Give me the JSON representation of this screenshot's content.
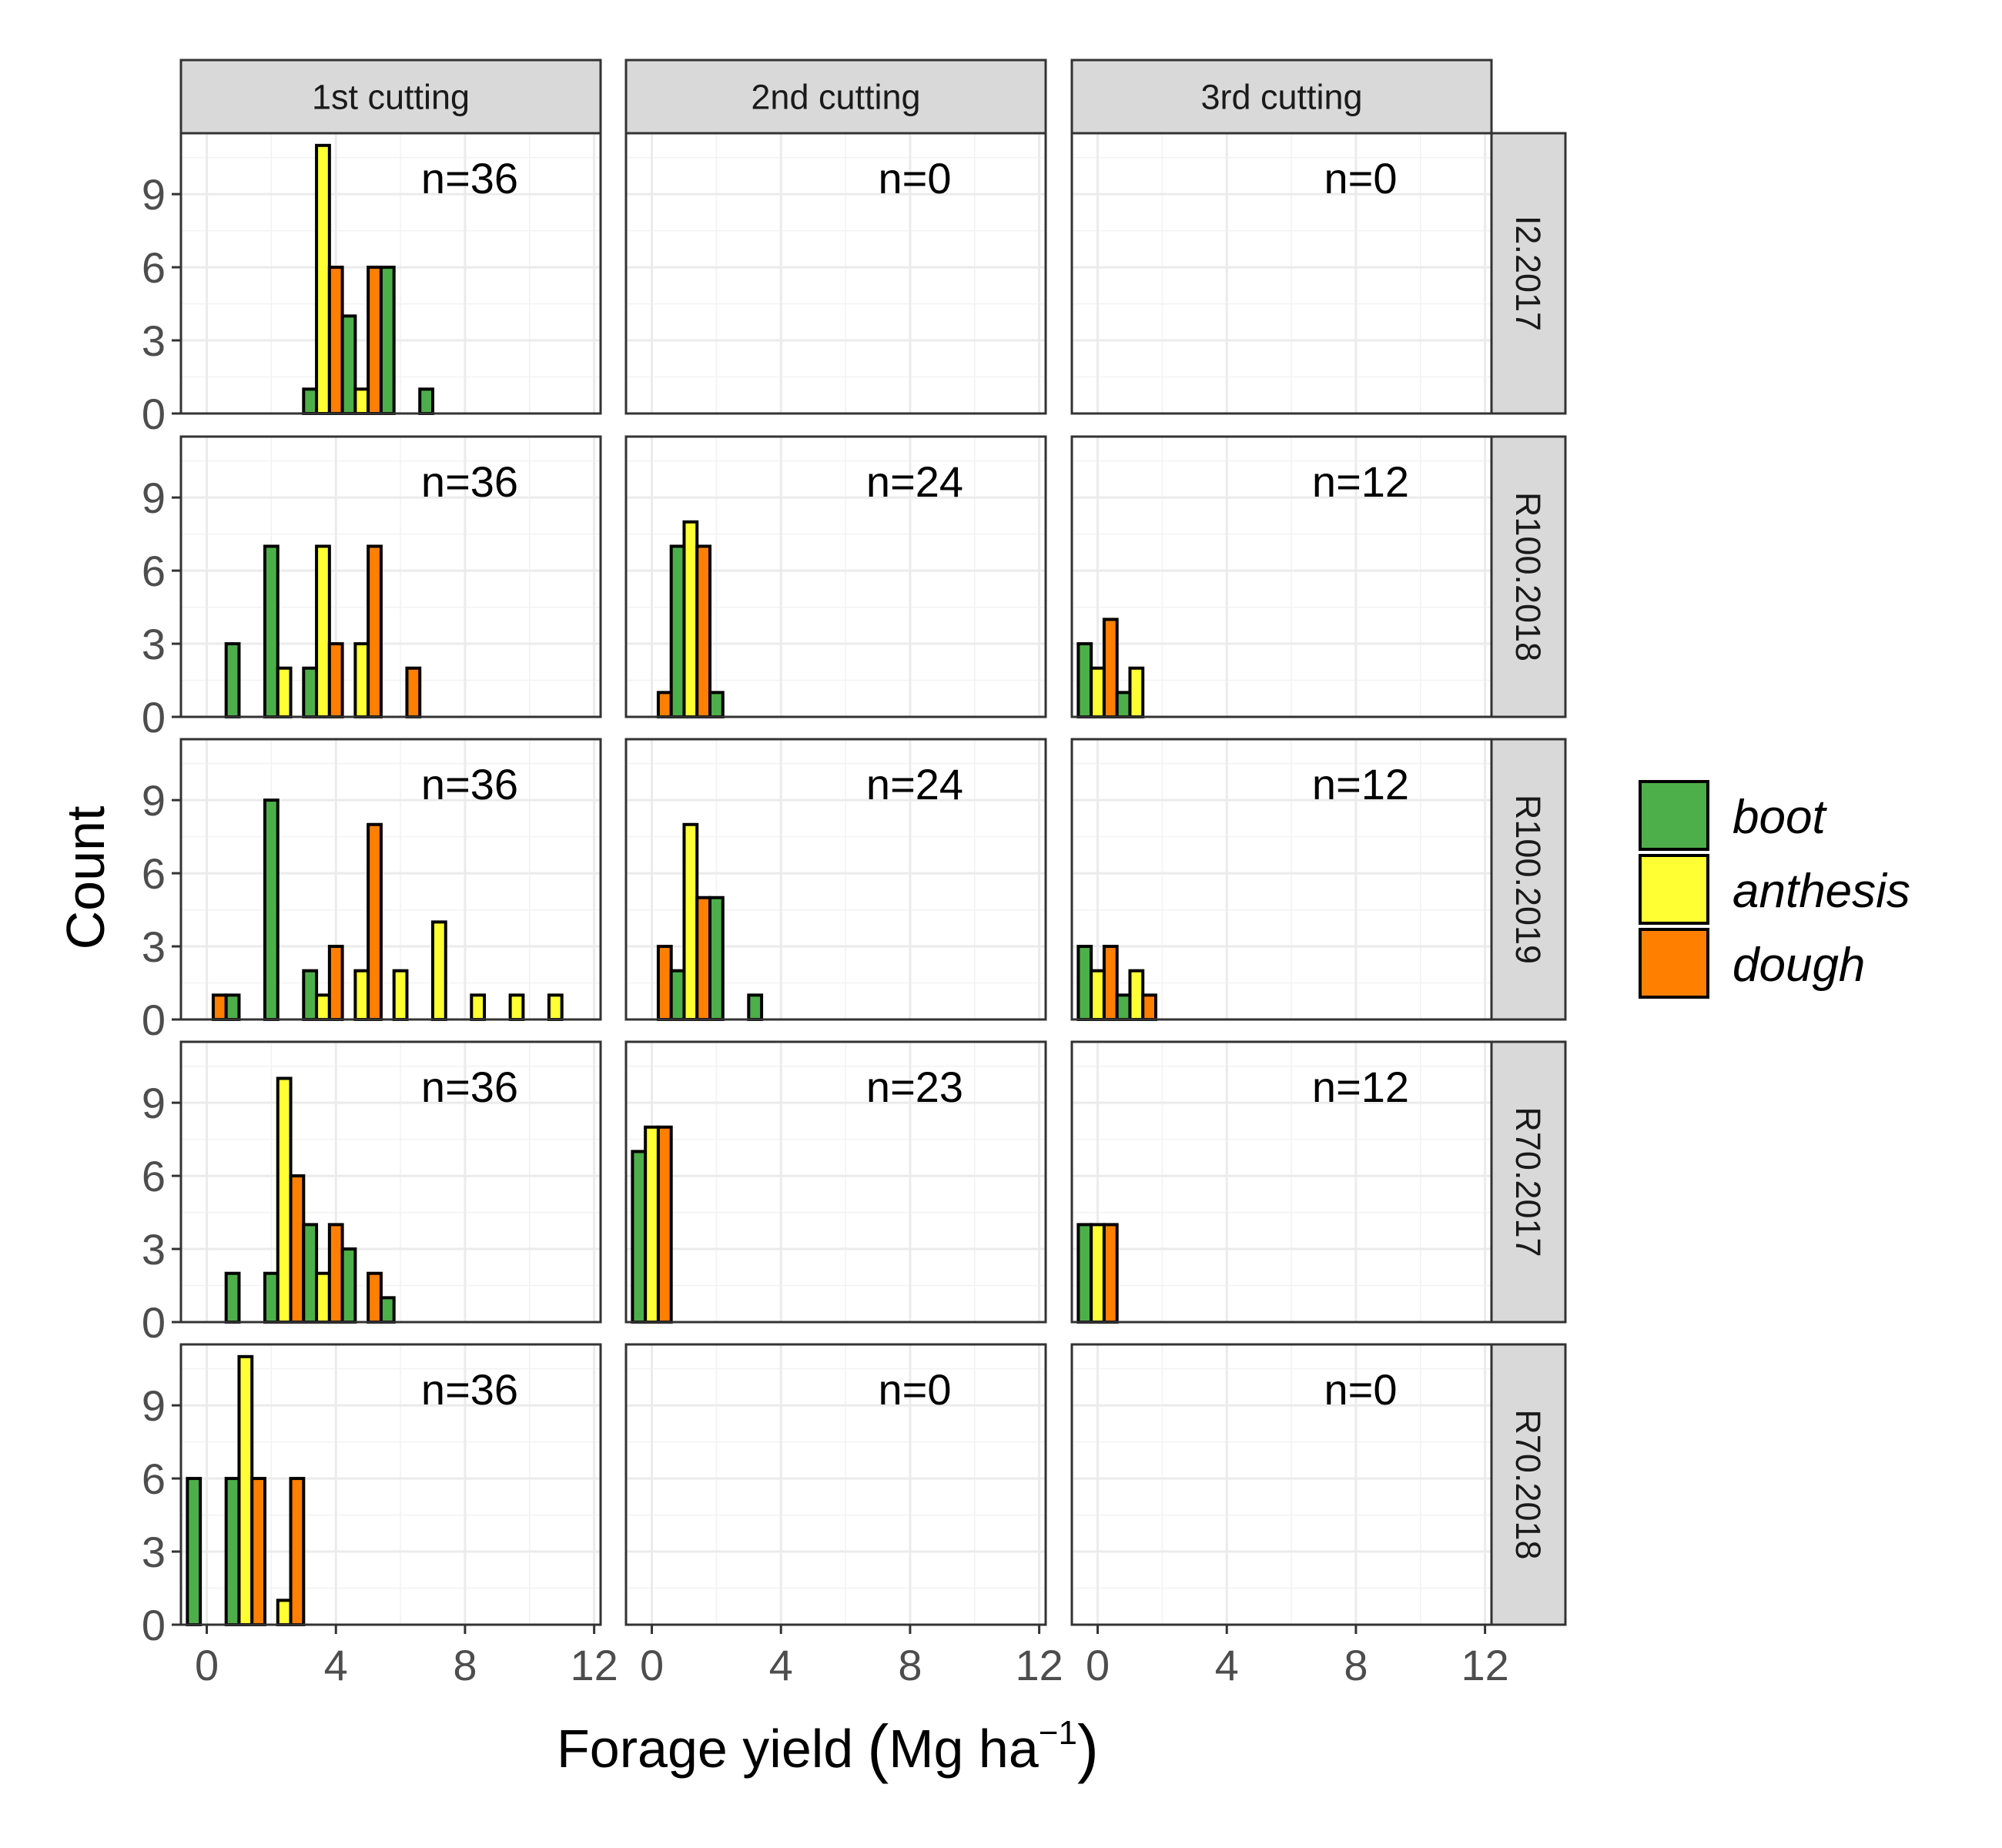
{
  "chart_data": {
    "type": "bar",
    "chart_kind": "faceted histogram",
    "xlabel": "Forage yield",
    "xlabel_unit": "Mg ha",
    "xlabel_unit_sup": "−1",
    "ylabel": "Count",
    "xlim": [
      -0.8,
      12.2
    ],
    "ylim": [
      0,
      11.5
    ],
    "x_ticks": [
      0,
      4,
      8,
      12
    ],
    "y_ticks": [
      0,
      3,
      6,
      9
    ],
    "bin_width": 1.2,
    "legend": {
      "position": "right",
      "entries": [
        {
          "name": "boot",
          "color": "#4daf4a"
        },
        {
          "name": "anthesis",
          "color": "#ffff33"
        },
        {
          "name": "dough",
          "color": "#ff7f00"
        }
      ]
    },
    "columns": [
      "1st cutting",
      "2nd cutting",
      "3rd cutting"
    ],
    "rows": [
      "I2.2017",
      "R100.2018",
      "R100.2019",
      "R70.2017",
      "R70.2018"
    ],
    "panels": [
      {
        "row": 0,
        "col": 0,
        "n_label": "n=36",
        "bars": [
          {
            "stage": "boot",
            "x": 3.2,
            "count": 1
          },
          {
            "stage": "anthesis",
            "x": 3.6,
            "count": 11
          },
          {
            "stage": "dough",
            "x": 4.0,
            "count": 6
          },
          {
            "stage": "boot",
            "x": 4.4,
            "count": 4
          },
          {
            "stage": "anthesis",
            "x": 4.8,
            "count": 1
          },
          {
            "stage": "dough",
            "x": 5.2,
            "count": 6
          },
          {
            "stage": "boot",
            "x": 5.6,
            "count": 6
          },
          {
            "stage": "boot",
            "x": 6.8,
            "count": 1
          }
        ]
      },
      {
        "row": 0,
        "col": 1,
        "n_label": "n=0",
        "bars": []
      },
      {
        "row": 0,
        "col": 2,
        "n_label": "n=0",
        "bars": []
      },
      {
        "row": 1,
        "col": 0,
        "n_label": "n=36",
        "bars": [
          {
            "stage": "boot",
            "x": 0.8,
            "count": 3
          },
          {
            "stage": "boot",
            "x": 2.0,
            "count": 7
          },
          {
            "stage": "anthesis",
            "x": 2.4,
            "count": 2
          },
          {
            "stage": "boot",
            "x": 3.2,
            "count": 2
          },
          {
            "stage": "anthesis",
            "x": 3.6,
            "count": 7
          },
          {
            "stage": "dough",
            "x": 4.0,
            "count": 3
          },
          {
            "stage": "anthesis",
            "x": 4.8,
            "count": 3
          },
          {
            "stage": "dough",
            "x": 5.2,
            "count": 7
          },
          {
            "stage": "dough",
            "x": 6.4,
            "count": 2
          }
        ]
      },
      {
        "row": 1,
        "col": 1,
        "n_label": "n=24",
        "bars": [
          {
            "stage": "dough",
            "x": 0.4,
            "count": 1
          },
          {
            "stage": "boot",
            "x": 0.8,
            "count": 7
          },
          {
            "stage": "anthesis",
            "x": 1.2,
            "count": 8
          },
          {
            "stage": "dough",
            "x": 1.6,
            "count": 7
          },
          {
            "stage": "boot",
            "x": 2.0,
            "count": 1
          }
        ]
      },
      {
        "row": 1,
        "col": 2,
        "n_label": "n=12",
        "bars": [
          {
            "stage": "boot",
            "x": -0.4,
            "count": 3
          },
          {
            "stage": "anthesis",
            "x": 0.0,
            "count": 2
          },
          {
            "stage": "dough",
            "x": 0.4,
            "count": 4
          },
          {
            "stage": "boot",
            "x": 0.8,
            "count": 1
          },
          {
            "stage": "anthesis",
            "x": 1.2,
            "count": 2
          }
        ]
      },
      {
        "row": 2,
        "col": 0,
        "n_label": "n=36",
        "bars": [
          {
            "stage": "dough",
            "x": 0.4,
            "count": 1
          },
          {
            "stage": "boot",
            "x": 0.8,
            "count": 1
          },
          {
            "stage": "boot",
            "x": 2.0,
            "count": 9
          },
          {
            "stage": "boot",
            "x": 3.2,
            "count": 2
          },
          {
            "stage": "anthesis",
            "x": 3.6,
            "count": 1
          },
          {
            "stage": "dough",
            "x": 4.0,
            "count": 3
          },
          {
            "stage": "anthesis",
            "x": 4.8,
            "count": 2
          },
          {
            "stage": "dough",
            "x": 5.2,
            "count": 8
          },
          {
            "stage": "anthesis",
            "x": 6.0,
            "count": 2
          },
          {
            "stage": "anthesis",
            "x": 7.2,
            "count": 4
          },
          {
            "stage": "anthesis",
            "x": 8.4,
            "count": 1
          },
          {
            "stage": "anthesis",
            "x": 9.6,
            "count": 1
          },
          {
            "stage": "anthesis",
            "x": 10.8,
            "count": 1
          }
        ]
      },
      {
        "row": 2,
        "col": 1,
        "n_label": "n=24",
        "bars": [
          {
            "stage": "dough",
            "x": 0.4,
            "count": 3
          },
          {
            "stage": "boot",
            "x": 0.8,
            "count": 2
          },
          {
            "stage": "anthesis",
            "x": 1.2,
            "count": 8
          },
          {
            "stage": "dough",
            "x": 1.6,
            "count": 5
          },
          {
            "stage": "boot",
            "x": 2.0,
            "count": 5
          },
          {
            "stage": "boot",
            "x": 3.2,
            "count": 1
          }
        ]
      },
      {
        "row": 2,
        "col": 2,
        "n_label": "n=12",
        "bars": [
          {
            "stage": "boot",
            "x": -0.4,
            "count": 3
          },
          {
            "stage": "anthesis",
            "x": 0.0,
            "count": 2
          },
          {
            "stage": "dough",
            "x": 0.4,
            "count": 3
          },
          {
            "stage": "boot",
            "x": 0.8,
            "count": 1
          },
          {
            "stage": "anthesis",
            "x": 1.2,
            "count": 2
          },
          {
            "stage": "dough",
            "x": 1.6,
            "count": 1
          }
        ]
      },
      {
        "row": 3,
        "col": 0,
        "n_label": "n=36",
        "bars": [
          {
            "stage": "boot",
            "x": 0.8,
            "count": 2
          },
          {
            "stage": "boot",
            "x": 2.0,
            "count": 2
          },
          {
            "stage": "anthesis",
            "x": 2.4,
            "count": 10
          },
          {
            "stage": "dough",
            "x": 2.8,
            "count": 6
          },
          {
            "stage": "boot",
            "x": 3.2,
            "count": 4
          },
          {
            "stage": "anthesis",
            "x": 3.6,
            "count": 2
          },
          {
            "stage": "dough",
            "x": 4.0,
            "count": 4
          },
          {
            "stage": "boot",
            "x": 4.4,
            "count": 3
          },
          {
            "stage": "dough",
            "x": 5.2,
            "count": 2
          },
          {
            "stage": "boot",
            "x": 5.6,
            "count": 1
          }
        ]
      },
      {
        "row": 3,
        "col": 1,
        "n_label": "n=23",
        "bars": [
          {
            "stage": "boot",
            "x": -0.4,
            "count": 7
          },
          {
            "stage": "anthesis",
            "x": 0.0,
            "count": 8
          },
          {
            "stage": "dough",
            "x": 0.4,
            "count": 8
          }
        ]
      },
      {
        "row": 3,
        "col": 2,
        "n_label": "n=12",
        "bars": [
          {
            "stage": "boot",
            "x": -0.4,
            "count": 4
          },
          {
            "stage": "anthesis",
            "x": 0.0,
            "count": 4
          },
          {
            "stage": "dough",
            "x": 0.4,
            "count": 4
          }
        ]
      },
      {
        "row": 4,
        "col": 0,
        "n_label": "n=36",
        "bars": [
          {
            "stage": "boot",
            "x": -0.4,
            "count": 6
          },
          {
            "stage": "boot",
            "x": 0.8,
            "count": 6
          },
          {
            "stage": "anthesis",
            "x": 1.2,
            "count": 11
          },
          {
            "stage": "dough",
            "x": 1.6,
            "count": 6
          },
          {
            "stage": "anthesis",
            "x": 2.4,
            "count": 1
          },
          {
            "stage": "dough",
            "x": 2.8,
            "count": 6
          }
        ]
      },
      {
        "row": 4,
        "col": 1,
        "n_label": "n=0",
        "bars": []
      },
      {
        "row": 4,
        "col": 2,
        "n_label": "n=0",
        "bars": []
      }
    ]
  }
}
